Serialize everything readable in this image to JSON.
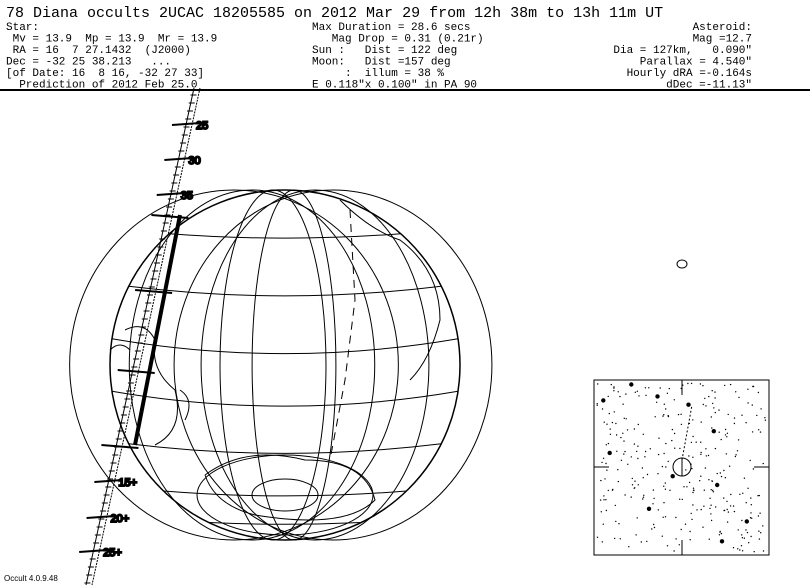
{
  "header": {
    "title": "78 Diana occults 2UCAC 18205585 on 2012 Mar 29 from 12h 38m to 13h 11m UT",
    "left": [
      "Star:",
      " Mv = 13.9  Mp = 13.9  Mr = 13.9",
      " RA = 16  7 27.1432  (J2000)",
      "Dec = -32 25 38.213   ...",
      "[of Date: 16  8 16, -32 27 33]",
      "  Prediction of 2012 Feb 25.0"
    ],
    "middle": [
      "Max Duration = 28.6 secs",
      "   Mag Drop = 0.31 (0.21r)",
      "Sun :   Dist = 122 deg",
      "Moon:   Dist =157 deg",
      "     :  illum = 38 %",
      "E 0.118\"x 0.100\" in PA 90"
    ],
    "right": [
      "Asteroid:",
      "Mag =12.7",
      "Dia = 127km,   0.090\"",
      "Parallax = 4.540\"",
      "Hourly dRA =-0.164s",
      "dDec =-11.13\""
    ]
  },
  "path_labels": [
    "25",
    "30",
    "35",
    "15+",
    "20+",
    "25+"
  ],
  "footer": "Occult 4.0.9.48"
}
